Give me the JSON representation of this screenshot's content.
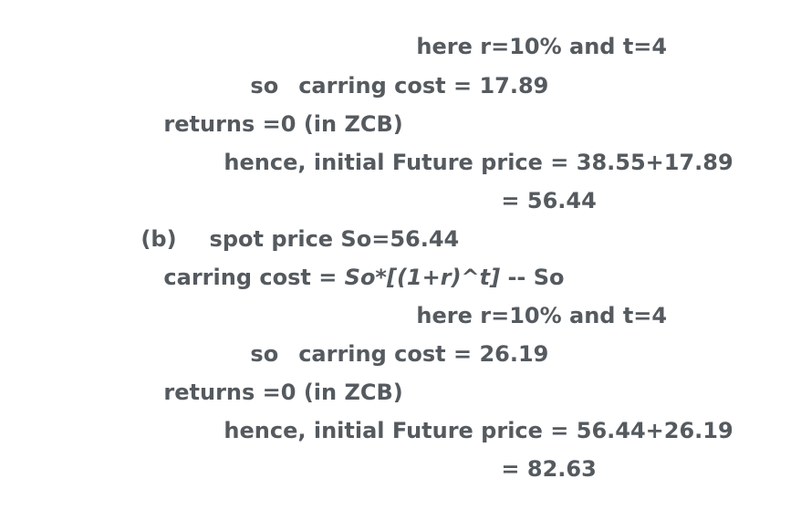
{
  "lines": {
    "l1": "here r=10% and t=4",
    "l2_so": "so",
    "l2_text": "carring cost = 17.89",
    "l3": "returns =0 (in ZCB)",
    "l4": "hence, initial Future price = 38.55+17.89",
    "l5": "= 56.44",
    "l6_label": "(b)",
    "l6_text": "spot price So=56.44",
    "l7_prefix": "carring cost = ",
    "l7_formula": "So*[(1+r)^t]",
    "l7_suffix": " -- So",
    "l8": "here r=10% and t=4",
    "l9_so": "so",
    "l9_text": "carring cost = 26.19",
    "l10": "returns =0 (in ZCB)",
    "l11": "hence, initial Future price = 56.44+26.19",
    "l12": "= 82.63"
  },
  "colors": {
    "text": "#555a5f",
    "background": "#ffffff"
  }
}
